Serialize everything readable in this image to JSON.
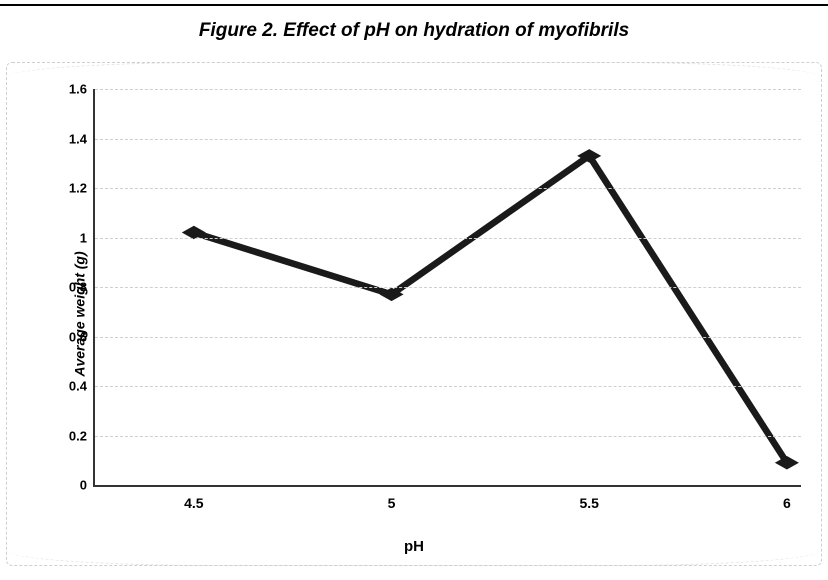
{
  "title": "Figure 2. Effect of pH on hydration of myofibrils",
  "title_fontsize": 19,
  "chart": {
    "type": "line",
    "xlabel": "pH",
    "ylabel": "Average weight (g)",
    "label_fontsize": 14,
    "xlabel_fontsize": 15,
    "x_categories": [
      "4.5",
      "5",
      "5.5",
      "6"
    ],
    "y_values": [
      1.02,
      0.77,
      1.33,
      0.09
    ],
    "ylim": [
      0,
      1.6
    ],
    "ytick_step": 0.2,
    "ytick_labels": [
      "0",
      "0.2",
      "0.4",
      "0.6",
      "0.8",
      "1",
      "1.2",
      "1.4",
      "1.6"
    ],
    "line_color": "#1a1a1a",
    "line_width": 3,
    "marker_style": "diamond",
    "marker_size": 12,
    "marker_color": "#1a1a1a",
    "grid_color": "#cfcfcf",
    "grid_dash": "4 4",
    "axis_color": "#333333",
    "background_color": "#ffffff",
    "outer_border_color": "#cfcfcf"
  }
}
